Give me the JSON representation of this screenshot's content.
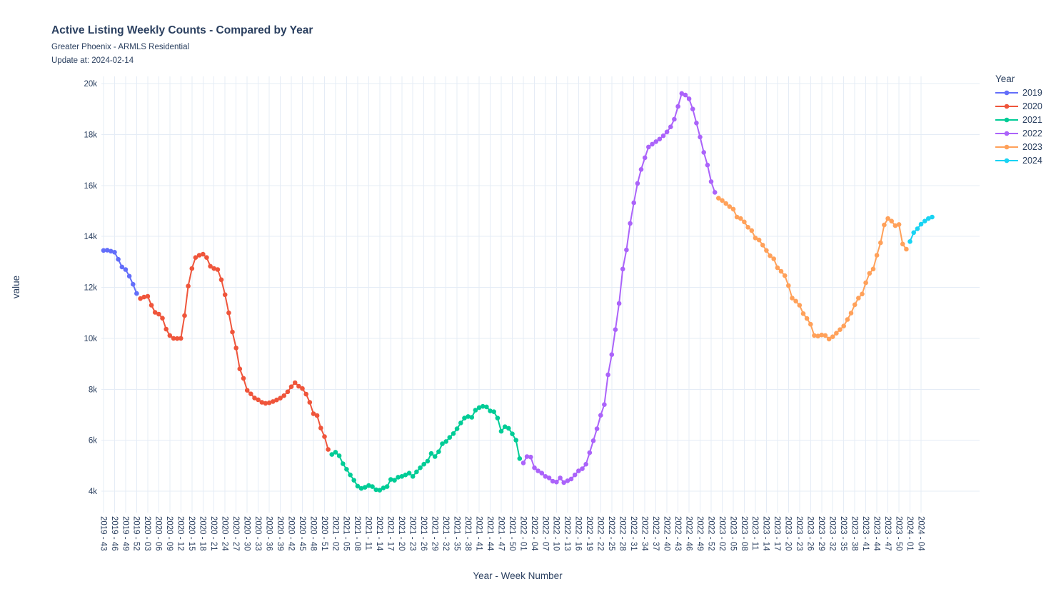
{
  "header": {
    "title": "Active Listing Weekly Counts - Compared by Year",
    "subtitle": "Greater Phoenix - ARMLS Residential",
    "update_note": "Update at: 2024-02-14"
  },
  "chart_data": {
    "type": "line",
    "title": "Active Listing Weekly Counts - Compared by Year",
    "subtitle": "Greater Phoenix - ARMLS Residential",
    "update_note": "Update at: 2024-02-14",
    "xlabel": "Year - Week Number",
    "ylabel": "value",
    "x_unit": "year-week category, one point per week, ticks every 3 weeks",
    "ylim": [
      4000,
      20000
    ],
    "yticks": [
      "4k",
      "6k",
      "8k",
      "10k",
      "12k",
      "14k",
      "16k",
      "18k",
      "20k"
    ],
    "x_first_tick": "2019 - 43",
    "x_last_tick": "2024 - 04",
    "grid": true,
    "legend_title": "Year",
    "legend_position": "right",
    "series": [
      {
        "name": "2019",
        "color": "#636EFA",
        "first_week": 43,
        "values": [
          13450,
          13460,
          13420,
          13380,
          13100,
          12800,
          12700,
          12440,
          12120,
          11760
        ]
      },
      {
        "name": "2020",
        "color": "#EF553B",
        "first_week": 1,
        "values": [
          11560,
          11620,
          11650,
          11300,
          11020,
          10950,
          10790,
          10360,
          10110,
          10000,
          9990,
          10000,
          10890,
          12050,
          12740,
          13170,
          13260,
          13300,
          13170,
          12830,
          12740,
          12700,
          12300,
          11710,
          11000,
          10250,
          9620,
          8800,
          8430,
          7960,
          7820,
          7660,
          7590,
          7490,
          7450,
          7470,
          7520,
          7580,
          7650,
          7750,
          7900,
          8100,
          8260,
          8120,
          8030,
          7810,
          7490,
          7040,
          6970,
          6480,
          6140,
          5640
        ]
      },
      {
        "name": "2021",
        "color": "#00CC96",
        "first_week": 1,
        "values": [
          5440,
          5530,
          5390,
          5080,
          4860,
          4640,
          4430,
          4200,
          4110,
          4150,
          4220,
          4180,
          4060,
          4040,
          4130,
          4180,
          4460,
          4430,
          4550,
          4580,
          4640,
          4710,
          4580,
          4760,
          4920,
          5060,
          5180,
          5480,
          5360,
          5550,
          5860,
          5950,
          6110,
          6260,
          6450,
          6680,
          6870,
          6930,
          6900,
          7180,
          7280,
          7330,
          7310,
          7150,
          7120,
          6870,
          6350,
          6530,
          6470,
          6250,
          6000,
          5280
        ]
      },
      {
        "name": "2022",
        "color": "#AB63FA",
        "first_week": 1,
        "values": [
          5110,
          5360,
          5340,
          4920,
          4800,
          4710,
          4580,
          4520,
          4390,
          4360,
          4520,
          4340,
          4410,
          4480,
          4640,
          4800,
          4880,
          5060,
          5510,
          5980,
          6450,
          6980,
          7400,
          8570,
          9360,
          10340,
          11370,
          12720,
          13470,
          14510,
          15320,
          16080,
          16630,
          17090,
          17510,
          17620,
          17720,
          17820,
          17950,
          18100,
          18300,
          18600,
          19100,
          19610,
          19550,
          19400,
          19000,
          18450,
          17900,
          17300,
          16800,
          16150,
          15730
        ]
      },
      {
        "name": "2023",
        "color": "#FFA15A",
        "first_week": 1,
        "values": [
          15500,
          15410,
          15290,
          15170,
          15070,
          14760,
          14700,
          14570,
          14360,
          14230,
          13940,
          13860,
          13660,
          13450,
          13240,
          13120,
          12770,
          12630,
          12460,
          12070,
          11580,
          11460,
          11300,
          10970,
          10780,
          10550,
          10110,
          10090,
          10130,
          10110,
          9970,
          10060,
          10200,
          10340,
          10480,
          10740,
          10990,
          11320,
          11580,
          11740,
          12180,
          12550,
          12720,
          13260,
          13750,
          14450,
          14700,
          14600,
          14420,
          14470,
          13700,
          13500
        ]
      },
      {
        "name": "2024",
        "color": "#19D3F3",
        "first_week": 1,
        "values": [
          13800,
          14150,
          14300,
          14480,
          14600,
          14700,
          14760
        ]
      }
    ]
  },
  "colors": {
    "text": "#2a3f5f",
    "gridline": "#E5ECF6",
    "background": "#ffffff"
  }
}
